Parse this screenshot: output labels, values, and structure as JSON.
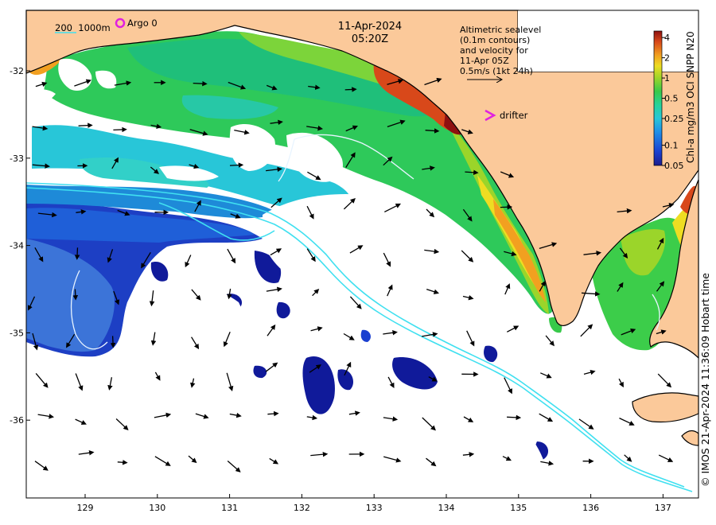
{
  "header": {
    "date": "11-Apr-2024",
    "time": "05:20Z"
  },
  "legend": {
    "isobath_label": "200  1000m",
    "argo_label": "Argo 0",
    "drifter_label": "drifter",
    "altimetry_lines": [
      "Altimetric sealevel",
      "(0.1m contours)",
      "and velocity for",
      "11-Apr 05Z",
      "0.5m/s (1kt 24h)"
    ]
  },
  "colorbar": {
    "title": "Chl-a mg/m3 OCI SNPP N20",
    "ticks": [
      "4",
      "2",
      "1",
      "0.5",
      "0.25",
      "0.1",
      "0.05"
    ],
    "tick_values": [
      4,
      2,
      1,
      0.5,
      0.25,
      0.1,
      0.05
    ],
    "range": [
      0.05,
      5
    ],
    "scale": "log",
    "colors": [
      "#1c1c8c",
      "#1a3fd0",
      "#1f8fe8",
      "#28c6d8",
      "#26d39a",
      "#38c94a",
      "#9bd52a",
      "#eedd22",
      "#f2a020",
      "#d8481a",
      "#8e1010"
    ]
  },
  "axes": {
    "x_ticks": [
      "129",
      "130",
      "131",
      "132",
      "133",
      "134",
      "135",
      "136",
      "137"
    ],
    "y_ticks": [
      "-32",
      "-33",
      "-34",
      "-35",
      "-36"
    ]
  },
  "credit": "© IMOS 21-Apr-2024 11:36:09 Hobart time",
  "colors": {
    "land": "#fbc99a",
    "contour": "#40e0f0",
    "argo": "#e020e0",
    "drifter": "#e020e0"
  }
}
